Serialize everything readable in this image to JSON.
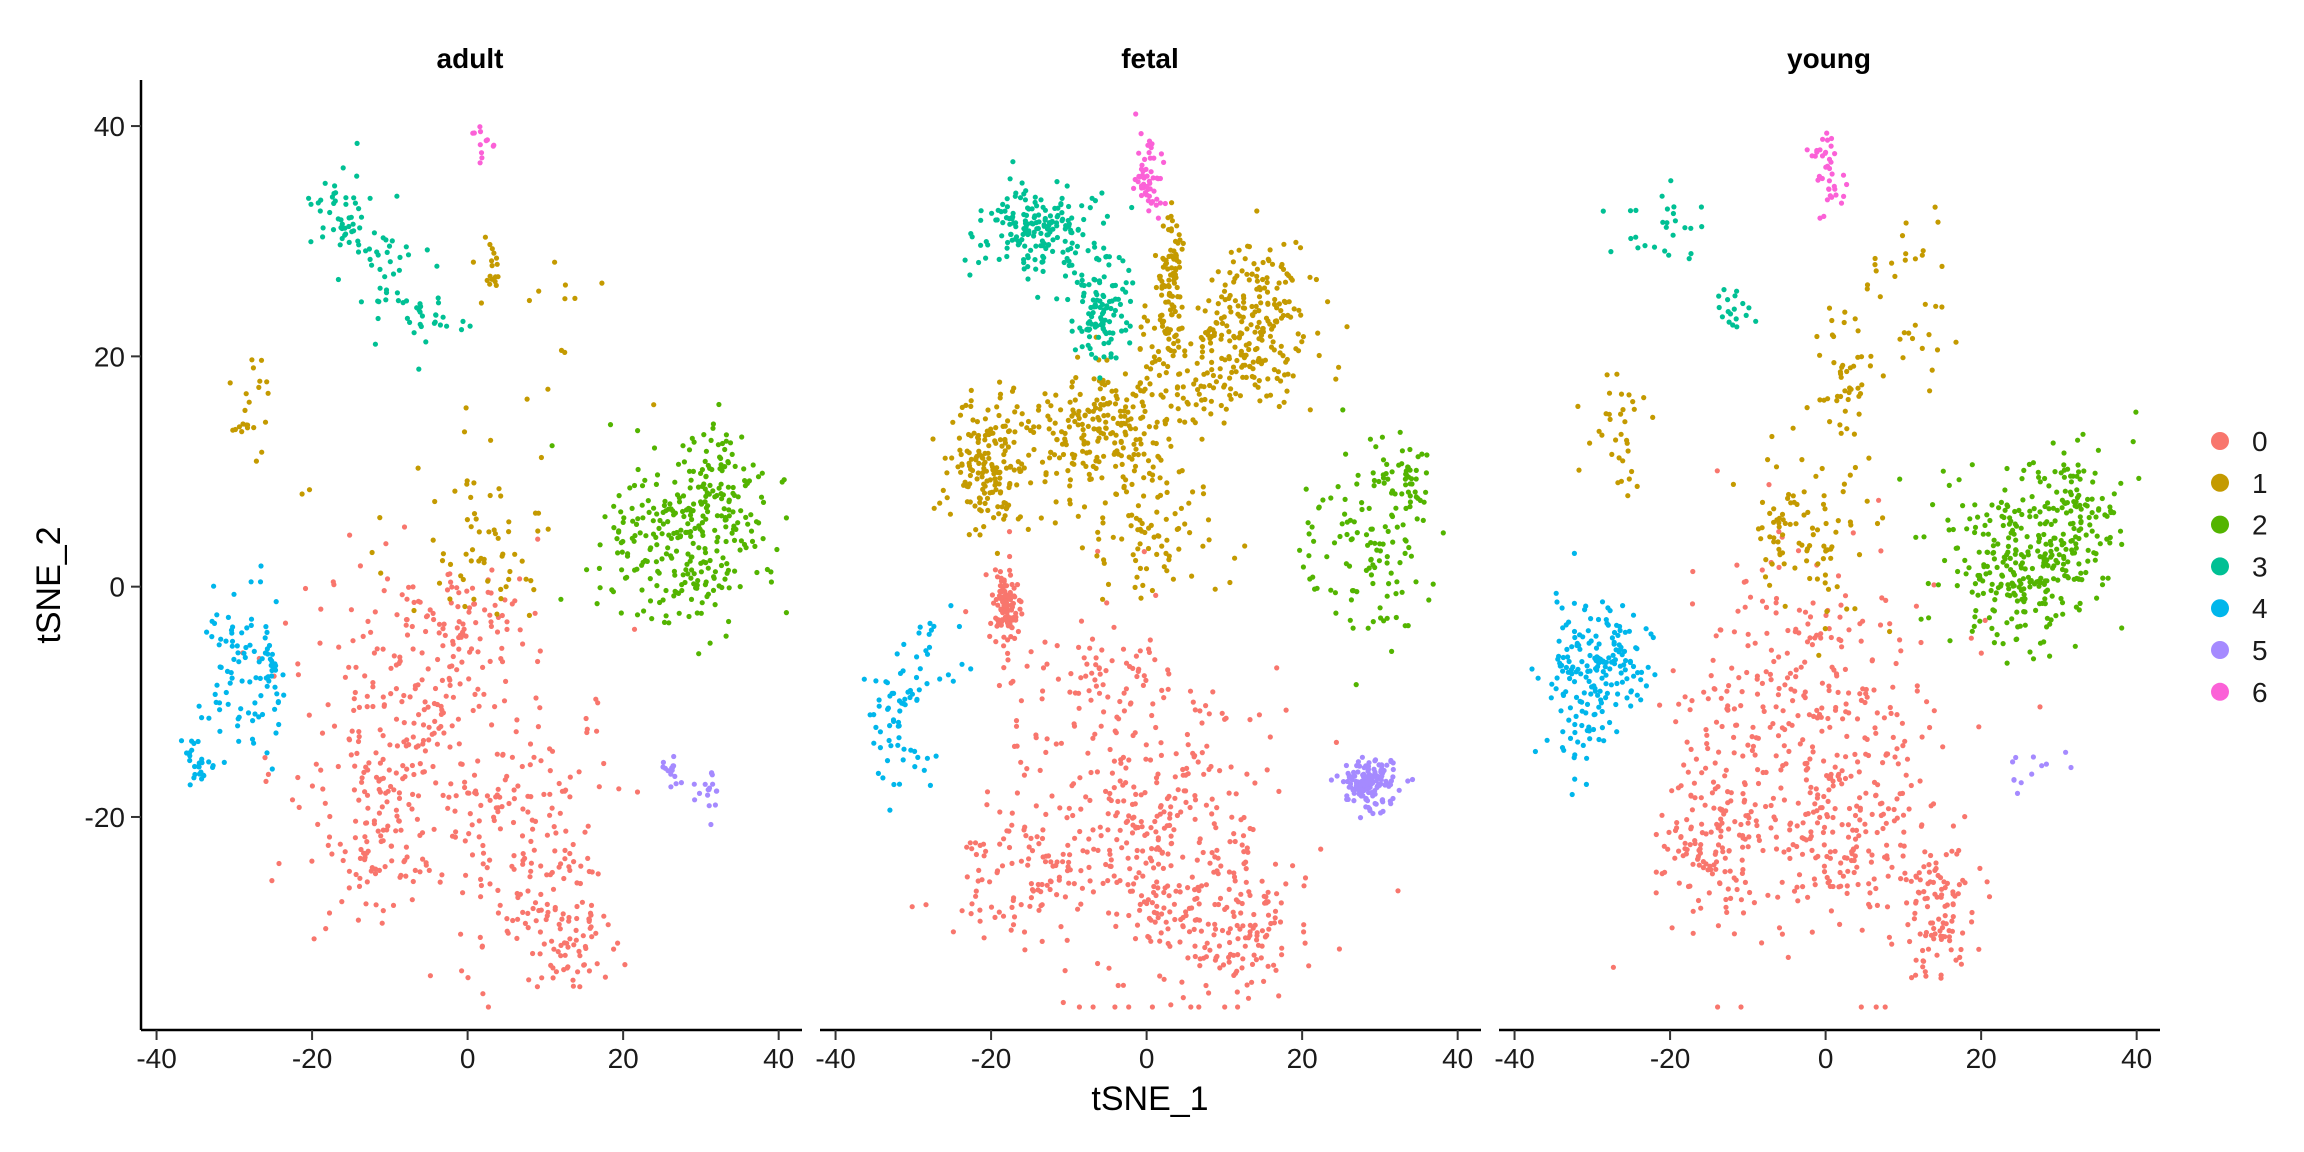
{
  "chart_data": {
    "type": "scatter",
    "xlabel": "tSNE_1",
    "ylabel": "tSNE_2",
    "xlim": [
      -42,
      43
    ],
    "ylim": [
      -38.5,
      44
    ],
    "x_ticks": [
      -40,
      -20,
      0,
      20,
      40
    ],
    "y_ticks": [
      -20,
      0,
      20,
      40
    ],
    "x_tick_labels": [
      "-40",
      "-20",
      "0",
      "20",
      "40"
    ],
    "y_tick_labels": [
      "-20",
      "0",
      "20",
      "40"
    ],
    "grid": false,
    "legend_position": "right",
    "legend": [
      {
        "label": "0",
        "color": "#F8766D"
      },
      {
        "label": "1",
        "color": "#C49A00"
      },
      {
        "label": "2",
        "color": "#53B400"
      },
      {
        "label": "3",
        "color": "#00C094"
      },
      {
        "label": "4",
        "color": "#00B6EB"
      },
      {
        "label": "5",
        "color": "#A58AFF"
      },
      {
        "label": "6",
        "color": "#FB61D7"
      }
    ],
    "panels": [
      {
        "title": "adult",
        "clusters": [
          {
            "cluster": "0",
            "count": 620,
            "blobs": [
              {
                "cx": -5,
                "cy": -14,
                "sx": 9,
                "sy": 8,
                "w": 4
              },
              {
                "cx": 8,
                "cy": -24,
                "sx": 5,
                "sy": 5,
                "w": 2
              },
              {
                "cx": -12,
                "cy": -22,
                "sx": 4,
                "sy": 4,
                "w": 1
              },
              {
                "cx": -3,
                "cy": -3,
                "sx": 5,
                "sy": 2.5,
                "w": 1
              },
              {
                "cx": 14,
                "cy": -30,
                "sx": 2.5,
                "sy": 2.5,
                "w": 1
              }
            ]
          },
          {
            "cluster": "1",
            "count": 120,
            "blobs": [
              {
                "cx": 3,
                "cy": 3,
                "sx": 4,
                "sy": 3,
                "w": 3
              },
              {
                "cx": 3,
                "cy": 28,
                "sx": 1,
                "sy": 1.5,
                "w": 1
              },
              {
                "cx": -28,
                "cy": 15,
                "sx": 1.5,
                "sy": 2.5,
                "w": 1
              },
              {
                "cx": 10,
                "cy": 25,
                "sx": 6,
                "sy": 4,
                "w": 1
              },
              {
                "cx": -5,
                "cy": 8,
                "sx": 6,
                "sy": 5,
                "w": 1
              }
            ]
          },
          {
            "cluster": "2",
            "count": 330,
            "blobs": [
              {
                "cx": 28,
                "cy": 4,
                "sx": 5,
                "sy": 4,
                "w": 3
              },
              {
                "cx": 33,
                "cy": 8,
                "sx": 3,
                "sy": 2.5,
                "w": 1
              }
            ]
          },
          {
            "cluster": "3",
            "count": 110,
            "blobs": [
              {
                "cx": -16,
                "cy": 32,
                "sx": 2.5,
                "sy": 2,
                "w": 2
              },
              {
                "cx": -10,
                "cy": 27,
                "sx": 2.5,
                "sy": 2,
                "w": 1
              },
              {
                "cx": -5,
                "cy": 23,
                "sx": 2.5,
                "sy": 1.5,
                "w": 1
              }
            ]
          },
          {
            "cluster": "4",
            "count": 130,
            "blobs": [
              {
                "cx": -30,
                "cy": -7,
                "sx": 2.5,
                "sy": 4,
                "w": 3
              },
              {
                "cx": -35,
                "cy": -15,
                "sx": 1.2,
                "sy": 1,
                "w": 1
              },
              {
                "cx": -25,
                "cy": -8,
                "sx": 1,
                "sy": 3,
                "w": 1
              }
            ]
          },
          {
            "cluster": "5",
            "count": 32,
            "blobs": [
              {
                "cx": 26,
                "cy": -16,
                "sx": 1,
                "sy": 0.8,
                "w": 1
              },
              {
                "cx": 31,
                "cy": -18,
                "sx": 1,
                "sy": 1,
                "w": 1
              }
            ]
          },
          {
            "cluster": "6",
            "count": 12,
            "blobs": [
              {
                "cx": 1.5,
                "cy": 38.5,
                "sx": 0.8,
                "sy": 0.8,
                "w": 1
              }
            ]
          }
        ]
      },
      {
        "title": "fetal",
        "clusters": [
          {
            "cluster": "0",
            "count": 760,
            "blobs": [
              {
                "cx": 1,
                "cy": -22,
                "sx": 9,
                "sy": 6,
                "w": 4
              },
              {
                "cx": 12,
                "cy": -30,
                "sx": 4,
                "sy": 3,
                "w": 1
              },
              {
                "cx": -16,
                "cy": -25,
                "sx": 4,
                "sy": 3,
                "w": 1
              },
              {
                "cx": -5,
                "cy": -8,
                "sx": 6,
                "sy": 4,
                "w": 1
              },
              {
                "cx": -18,
                "cy": -2,
                "sx": 1,
                "sy": 2,
                "w": 1
              }
            ]
          },
          {
            "cluster": "1",
            "count": 900,
            "blobs": [
              {
                "cx": -20,
                "cy": 11,
                "sx": 3,
                "sy": 3,
                "w": 2
              },
              {
                "cx": -5,
                "cy": 14,
                "sx": 4,
                "sy": 3,
                "w": 2
              },
              {
                "cx": 10,
                "cy": 20,
                "sx": 5,
                "sy": 3,
                "w": 2
              },
              {
                "cx": 15,
                "cy": 25,
                "sx": 3,
                "sy": 3,
                "w": 1
              },
              {
                "cx": 0,
                "cy": 5,
                "sx": 5,
                "sy": 3,
                "w": 1
              },
              {
                "cx": 3,
                "cy": 26,
                "sx": 1,
                "sy": 3,
                "w": 1
              }
            ]
          },
          {
            "cluster": "2",
            "count": 160,
            "blobs": [
              {
                "cx": 28,
                "cy": 3,
                "sx": 4,
                "sy": 4,
                "w": 2
              },
              {
                "cx": 33,
                "cy": 9,
                "sx": 2,
                "sy": 2,
                "w": 1
              }
            ]
          },
          {
            "cluster": "3",
            "count": 300,
            "blobs": [
              {
                "cx": -14,
                "cy": 31,
                "sx": 4,
                "sy": 2,
                "w": 2
              },
              {
                "cx": -6,
                "cy": 24,
                "sx": 2,
                "sy": 2,
                "w": 1
              }
            ]
          },
          {
            "cluster": "4",
            "count": 80,
            "blobs": [
              {
                "cx": -32,
                "cy": -12,
                "sx": 2,
                "sy": 3,
                "w": 2
              },
              {
                "cx": -28,
                "cy": -6,
                "sx": 2,
                "sy": 2,
                "w": 1
              }
            ]
          },
          {
            "cluster": "5",
            "count": 160,
            "blobs": [
              {
                "cx": 28.5,
                "cy": -17,
                "sx": 1.5,
                "sy": 1,
                "w": 1
              }
            ]
          },
          {
            "cluster": "6",
            "count": 55,
            "blobs": [
              {
                "cx": 0,
                "cy": 36,
                "sx": 1,
                "sy": 2,
                "w": 1
              }
            ]
          }
        ]
      },
      {
        "title": "young",
        "clusters": [
          {
            "cluster": "0",
            "count": 720,
            "blobs": [
              {
                "cx": -3,
                "cy": -14,
                "sx": 9,
                "sy": 8,
                "w": 4
              },
              {
                "cx": 14,
                "cy": -28,
                "sx": 2.5,
                "sy": 3,
                "w": 1
              },
              {
                "cx": -15,
                "cy": -22,
                "sx": 3,
                "sy": 3,
                "w": 1
              },
              {
                "cx": 5,
                "cy": -22,
                "sx": 5,
                "sy": 4,
                "w": 1
              }
            ]
          },
          {
            "cluster": "1",
            "count": 210,
            "blobs": [
              {
                "cx": -3,
                "cy": 5,
                "sx": 4,
                "sy": 3,
                "w": 3
              },
              {
                "cx": -27,
                "cy": 14,
                "sx": 2,
                "sy": 3,
                "w": 1
              },
              {
                "cx": 10,
                "cy": 25,
                "sx": 3,
                "sy": 4,
                "w": 1
              },
              {
                "cx": 2,
                "cy": 18,
                "sx": 2,
                "sy": 3,
                "w": 1
              }
            ]
          },
          {
            "cluster": "2",
            "count": 380,
            "blobs": [
              {
                "cx": 25,
                "cy": 2,
                "sx": 5,
                "sy": 4,
                "w": 3
              },
              {
                "cx": 33,
                "cy": 7,
                "sx": 3,
                "sy": 3,
                "w": 1
              }
            ]
          },
          {
            "cluster": "3",
            "count": 45,
            "blobs": [
              {
                "cx": -20,
                "cy": 31,
                "sx": 3,
                "sy": 2,
                "w": 2
              },
              {
                "cx": -12,
                "cy": 24,
                "sx": 1,
                "sy": 1,
                "w": 1
              }
            ]
          },
          {
            "cluster": "4",
            "count": 200,
            "blobs": [
              {
                "cx": -31,
                "cy": -8,
                "sx": 2.5,
                "sy": 4,
                "w": 3
              },
              {
                "cx": -26,
                "cy": -6,
                "sx": 2,
                "sy": 2,
                "w": 1
              }
            ]
          },
          {
            "cluster": "5",
            "count": 12,
            "blobs": [
              {
                "cx": 26,
                "cy": -16,
                "sx": 3,
                "sy": 1,
                "w": 1
              }
            ]
          },
          {
            "cluster": "6",
            "count": 40,
            "blobs": [
              {
                "cx": 0.5,
                "cy": 36,
                "sx": 1,
                "sy": 2,
                "w": 1
              }
            ]
          }
        ]
      }
    ]
  }
}
